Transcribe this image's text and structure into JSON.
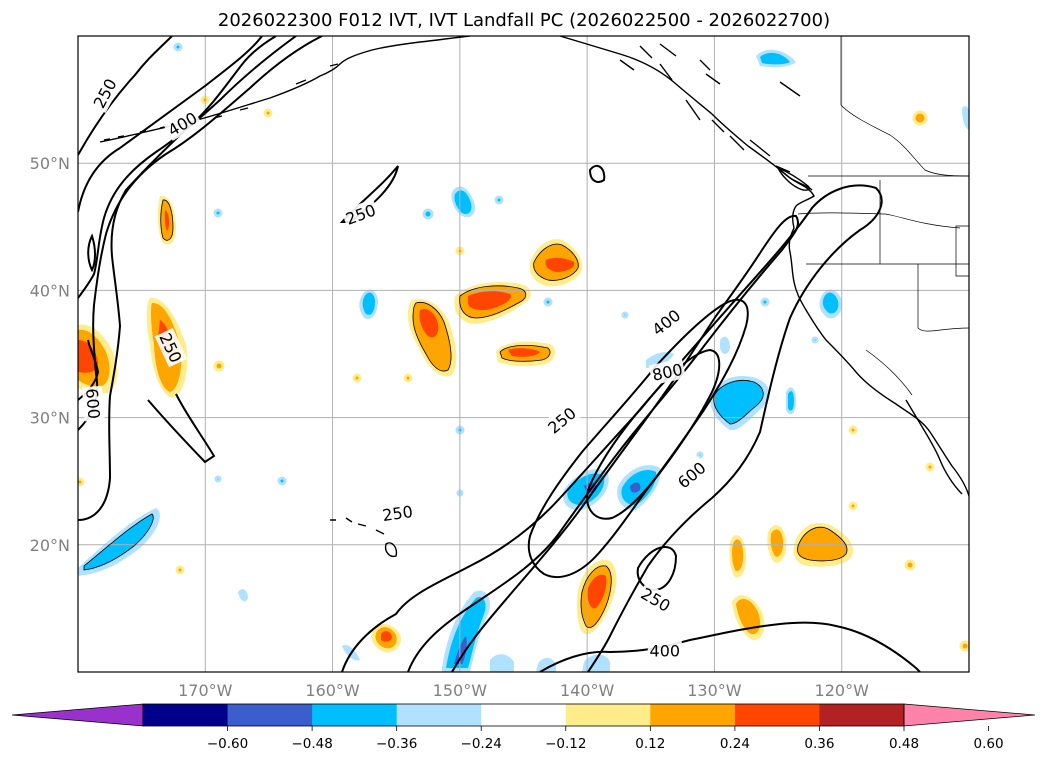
{
  "figure": {
    "title": "2026022300 F012 IVT, IVT Landfall PC (2026022500 - 2026022700)"
  },
  "map": {
    "projection": "cylindrical",
    "lon_range": [
      -180,
      -110
    ],
    "lat_range": [
      10,
      60
    ],
    "gridlines": true,
    "lat_ticks": [
      {
        "lat": 50,
        "label": "50°N"
      },
      {
        "lat": 40,
        "label": "40°N"
      },
      {
        "lat": 30,
        "label": "30°N"
      },
      {
        "lat": 20,
        "label": "20°N"
      }
    ],
    "lon_ticks": [
      {
        "lon": -170,
        "label": "170°W"
      },
      {
        "lon": -160,
        "label": "160°W"
      },
      {
        "lon": -150,
        "label": "150°W"
      },
      {
        "lon": -140,
        "label": "140°W"
      },
      {
        "lon": -130,
        "label": "130°W"
      },
      {
        "lon": -120,
        "label": "120°W"
      }
    ],
    "contour_labels": [
      {
        "text": "250",
        "lon": -177.9,
        "lat": 55.5,
        "rot": -62
      },
      {
        "text": "400",
        "lon": -171.8,
        "lat": 53.1,
        "rot": -30
      },
      {
        "text": "250",
        "lon": -157.8,
        "lat": 46.0,
        "rot": -20
      },
      {
        "text": "250",
        "lon": -172.7,
        "lat": 35.5,
        "rot": 65
      },
      {
        "text": "600",
        "lon": -178.8,
        "lat": 31.1,
        "rot": 85
      },
      {
        "text": "250",
        "lon": -154.9,
        "lat": 22.5,
        "rot": -8
      },
      {
        "text": "400",
        "lon": -133.8,
        "lat": 37.5,
        "rot": -38
      },
      {
        "text": "800",
        "lon": -133.7,
        "lat": 33.6,
        "rot": -12
      },
      {
        "text": "250",
        "lon": -142.0,
        "lat": 29.8,
        "rot": -40
      },
      {
        "text": "600",
        "lon": -131.8,
        "lat": 25.5,
        "rot": -40
      },
      {
        "text": "250",
        "lon": -134.6,
        "lat": 15.7,
        "rot": 30
      },
      {
        "text": "400",
        "lon": -133.9,
        "lat": 11.7,
        "rot": 0
      }
    ]
  },
  "colorbar": {
    "extend": "both",
    "bounds": [
      -0.72,
      -0.6,
      -0.48,
      -0.36,
      -0.24,
      -0.12,
      0.12,
      0.24,
      0.36,
      0.48,
      0.6,
      0.72
    ],
    "colors": [
      "#9932cc",
      "#00008b",
      "#3a5fcd",
      "#00bfff",
      "#b0e2ff",
      "#ffffff",
      "#ffec8b",
      "#ffa500",
      "#ff4500",
      "#b22222",
      "#ff82ab"
    ],
    "tick_labels": [
      "−0.60",
      "−0.48",
      "−0.36",
      "−0.24",
      "−0.12",
      "0.12",
      "0.24",
      "0.36",
      "0.48",
      "0.60"
    ]
  }
}
